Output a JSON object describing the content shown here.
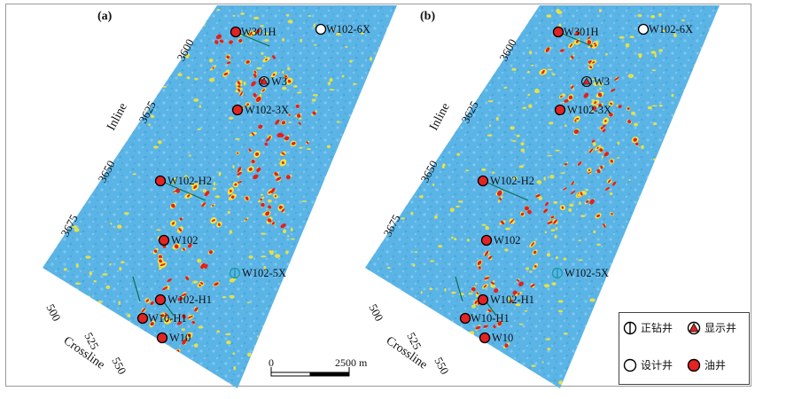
{
  "panels": [
    {
      "id": "a",
      "label": "(a)",
      "wells": [
        {
          "name": "W301H",
          "type": "oil"
        },
        {
          "name": "W102-6X",
          "type": "design"
        },
        {
          "name": "W3",
          "type": "show"
        },
        {
          "name": "W102-3X",
          "type": "oil"
        },
        {
          "name": "W102-H2",
          "type": "oil"
        },
        {
          "name": "W102",
          "type": "oil"
        },
        {
          "name": "W102-5X",
          "type": "drilling"
        },
        {
          "name": "W102-H1",
          "type": "oil"
        },
        {
          "name": "W10-H1",
          "type": "oil"
        },
        {
          "name": "W10",
          "type": "oil"
        }
      ]
    },
    {
      "id": "b",
      "label": "(b)",
      "wells": [
        {
          "name": "W301H",
          "type": "oil"
        },
        {
          "name": "W102-6X",
          "type": "design"
        },
        {
          "name": "W3",
          "type": "show"
        },
        {
          "name": "W102-3X",
          "type": "oil"
        },
        {
          "name": "W102-H2",
          "type": "oil"
        },
        {
          "name": "W102",
          "type": "oil"
        },
        {
          "name": "W102-5X",
          "type": "drilling"
        },
        {
          "name": "W102-H1",
          "type": "oil"
        },
        {
          "name": "W10-H1",
          "type": "oil"
        },
        {
          "name": "W10",
          "type": "oil"
        }
      ]
    }
  ],
  "axes": {
    "inline": {
      "label": "Inline",
      "ticks": [
        "3600",
        "3625",
        "3650",
        "3675"
      ]
    },
    "crossline": {
      "label": "Crossline",
      "ticks": [
        "500",
        "525",
        "550"
      ]
    }
  },
  "scale_bar": {
    "start": "0",
    "end": "2500 m"
  },
  "legend": [
    {
      "type": "drilling",
      "label": "正钻井"
    },
    {
      "type": "show",
      "label": "显示井"
    },
    {
      "type": "design",
      "label": "设计井"
    },
    {
      "type": "oil",
      "label": "油井"
    }
  ],
  "colors": {
    "background": "#5bb4e6",
    "amplitude_medium": "#f2e43a",
    "amplitude_high": "#e61e1e",
    "oil_well": "#e32222",
    "drilling_well": "#1a9aa8",
    "trajectory": "#0e6e4e"
  }
}
